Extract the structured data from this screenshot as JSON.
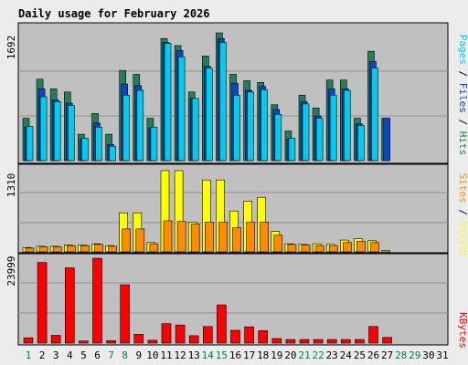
{
  "chart_data": [
    {
      "type": "bar",
      "title": "Daily usage for February 2026",
      "y_max_label": "1692",
      "legend": [
        "Pages",
        "Files",
        "Hits"
      ],
      "categories": [
        "1",
        "2",
        "3",
        "4",
        "5",
        "6",
        "7",
        "8",
        "9",
        "10",
        "11",
        "12",
        "13",
        "14",
        "15",
        "16",
        "17",
        "18",
        "19",
        "20",
        "21",
        "22",
        "23",
        "24",
        "25",
        "26",
        "27",
        "28",
        "29",
        "30",
        "31"
      ],
      "ylim": [
        0,
        1692
      ],
      "series": [
        {
          "name": "Hits",
          "values": [
            530,
            1020,
            900,
            860,
            330,
            590,
            330,
            1130,
            1080,
            530,
            1530,
            1440,
            860,
            1310,
            1600,
            1080,
            1000,
            980,
            700,
            370,
            820,
            660,
            1010,
            1010,
            530,
            1370,
            530,
            0,
            0,
            0,
            0
          ]
        },
        {
          "name": "Files",
          "values": [
            420,
            900,
            760,
            720,
            270,
            470,
            200,
            960,
            940,
            410,
            1480,
            1380,
            780,
            1180,
            1530,
            970,
            880,
            930,
            640,
            270,
            740,
            560,
            900,
            900,
            460,
            1240,
            530,
            0,
            0,
            0,
            0
          ]
        },
        {
          "name": "Pages",
          "values": [
            430,
            800,
            740,
            690,
            280,
            420,
            180,
            820,
            880,
            420,
            1470,
            1300,
            780,
            1160,
            1480,
            820,
            860,
            890,
            580,
            280,
            710,
            530,
            820,
            880,
            440,
            1160,
            0,
            0,
            0,
            0,
            0
          ]
        }
      ]
    },
    {
      "type": "bar",
      "y_max_label": "1310",
      "legend": [
        "Sites",
        "Visits"
      ],
      "categories": [
        "1",
        "2",
        "3",
        "4",
        "5",
        "6",
        "7",
        "8",
        "9",
        "10",
        "11",
        "12",
        "13",
        "14",
        "15",
        "16",
        "17",
        "18",
        "19",
        "20",
        "21",
        "22",
        "23",
        "24",
        "25",
        "26",
        "27",
        "28",
        "29",
        "30",
        "31"
      ],
      "ylim": [
        0,
        1310
      ],
      "series": [
        {
          "name": "Visits",
          "values": [
            70,
            90,
            90,
            110,
            110,
            130,
            100,
            630,
            630,
            150,
            1310,
            1310,
            480,
            1160,
            1160,
            660,
            820,
            880,
            330,
            130,
            120,
            130,
            120,
            190,
            210,
            180,
            20,
            0,
            0,
            0,
            0
          ]
        },
        {
          "name": "Sites",
          "values": [
            60,
            80,
            80,
            100,
            100,
            120,
            90,
            370,
            370,
            130,
            500,
            490,
            450,
            480,
            480,
            390,
            480,
            480,
            270,
            120,
            110,
            100,
            100,
            150,
            170,
            150,
            0,
            0,
            0,
            0,
            0
          ]
        }
      ]
    },
    {
      "type": "bar",
      "y_max_label": "23999",
      "legend": [
        "KBytes"
      ],
      "categories": [
        "1",
        "2",
        "3",
        "4",
        "5",
        "6",
        "7",
        "8",
        "9",
        "10",
        "11",
        "12",
        "13",
        "14",
        "15",
        "16",
        "17",
        "18",
        "19",
        "20",
        "21",
        "22",
        "23",
        "24",
        "25",
        "26",
        "27",
        "28",
        "29",
        "30",
        "31"
      ],
      "ylim": [
        0,
        23999
      ],
      "series": [
        {
          "name": "KBytes",
          "values": [
            1500,
            22800,
            2200,
            21300,
            600,
            24000,
            700,
            16500,
            2500,
            800,
            5500,
            5100,
            2100,
            4700,
            10800,
            3600,
            4600,
            3500,
            1300,
            1000,
            1000,
            1000,
            1000,
            1000,
            1000,
            4700,
            1600,
            0,
            0,
            0,
            0
          ]
        }
      ]
    }
  ],
  "colors": {
    "hits": "#21805A",
    "files": "#0B44C5",
    "pages": "#00CCEE",
    "visits": "#FFFF00",
    "sites": "#FF8C00",
    "kbytes": "#FF0000",
    "title": "#00008B",
    "weekend_label": "#00805A",
    "weekday_label": "#000000",
    "plot_bg": "#C0C0C0",
    "page_bg": "#ECECEC"
  },
  "weekend_days": [
    "1",
    "7",
    "8",
    "14",
    "15",
    "21",
    "22",
    "28",
    "29"
  ]
}
